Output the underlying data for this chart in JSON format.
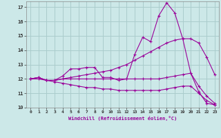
{
  "background_color": "#cce8e8",
  "grid_color": "#aacccc",
  "line_color": "#990099",
  "xlim": [
    -0.5,
    23.5
  ],
  "ylim": [
    10,
    17.4
  ],
  "xlabel": "Windchill (Refroidissement éolien,°C)",
  "yticks": [
    10,
    11,
    12,
    13,
    14,
    15,
    16,
    17
  ],
  "xticks": [
    0,
    1,
    2,
    3,
    4,
    5,
    6,
    7,
    8,
    9,
    10,
    11,
    12,
    13,
    14,
    15,
    16,
    17,
    18,
    19,
    20,
    21,
    22,
    23
  ],
  "series": [
    {
      "x": [
        0,
        1,
        2,
        3,
        4,
        5,
        6,
        7,
        8,
        9,
        10,
        11,
        12,
        13,
        14,
        15,
        16,
        17,
        18,
        19,
        20,
        21,
        22,
        23
      ],
      "y": [
        12.0,
        12.1,
        11.9,
        11.9,
        12.2,
        12.7,
        12.7,
        12.8,
        12.8,
        12.1,
        12.1,
        11.9,
        12.0,
        13.7,
        14.9,
        14.6,
        16.4,
        17.3,
        16.6,
        14.8,
        12.4,
        11.1,
        10.3,
        10.2
      ]
    },
    {
      "x": [
        0,
        1,
        2,
        3,
        4,
        5,
        6,
        7,
        8,
        9,
        10,
        11,
        12,
        13,
        14,
        15,
        16,
        17,
        18,
        19,
        20,
        21,
        22,
        23
      ],
      "y": [
        12.0,
        12.1,
        11.9,
        11.9,
        12.0,
        12.1,
        12.2,
        12.3,
        12.4,
        12.5,
        12.6,
        12.8,
        13.0,
        13.3,
        13.6,
        13.9,
        14.2,
        14.5,
        14.7,
        14.8,
        14.8,
        14.5,
        13.5,
        12.3
      ]
    },
    {
      "x": [
        0,
        1,
        2,
        3,
        4,
        5,
        6,
        7,
        8,
        9,
        10,
        11,
        12,
        13,
        14,
        15,
        16,
        17,
        18,
        19,
        20,
        21,
        22,
        23
      ],
      "y": [
        12.0,
        12.1,
        11.9,
        11.9,
        12.0,
        12.0,
        12.0,
        12.0,
        12.0,
        12.0,
        12.0,
        12.0,
        12.0,
        12.0,
        12.0,
        12.0,
        12.0,
        12.1,
        12.2,
        12.3,
        12.4,
        11.5,
        10.8,
        10.3
      ]
    },
    {
      "x": [
        0,
        1,
        2,
        3,
        4,
        5,
        6,
        7,
        8,
        9,
        10,
        11,
        12,
        13,
        14,
        15,
        16,
        17,
        18,
        19,
        20,
        21,
        22,
        23
      ],
      "y": [
        12.0,
        12.0,
        11.9,
        11.8,
        11.7,
        11.6,
        11.5,
        11.4,
        11.4,
        11.3,
        11.3,
        11.2,
        11.2,
        11.2,
        11.2,
        11.2,
        11.2,
        11.3,
        11.4,
        11.5,
        11.5,
        11.0,
        10.5,
        10.2
      ]
    }
  ]
}
